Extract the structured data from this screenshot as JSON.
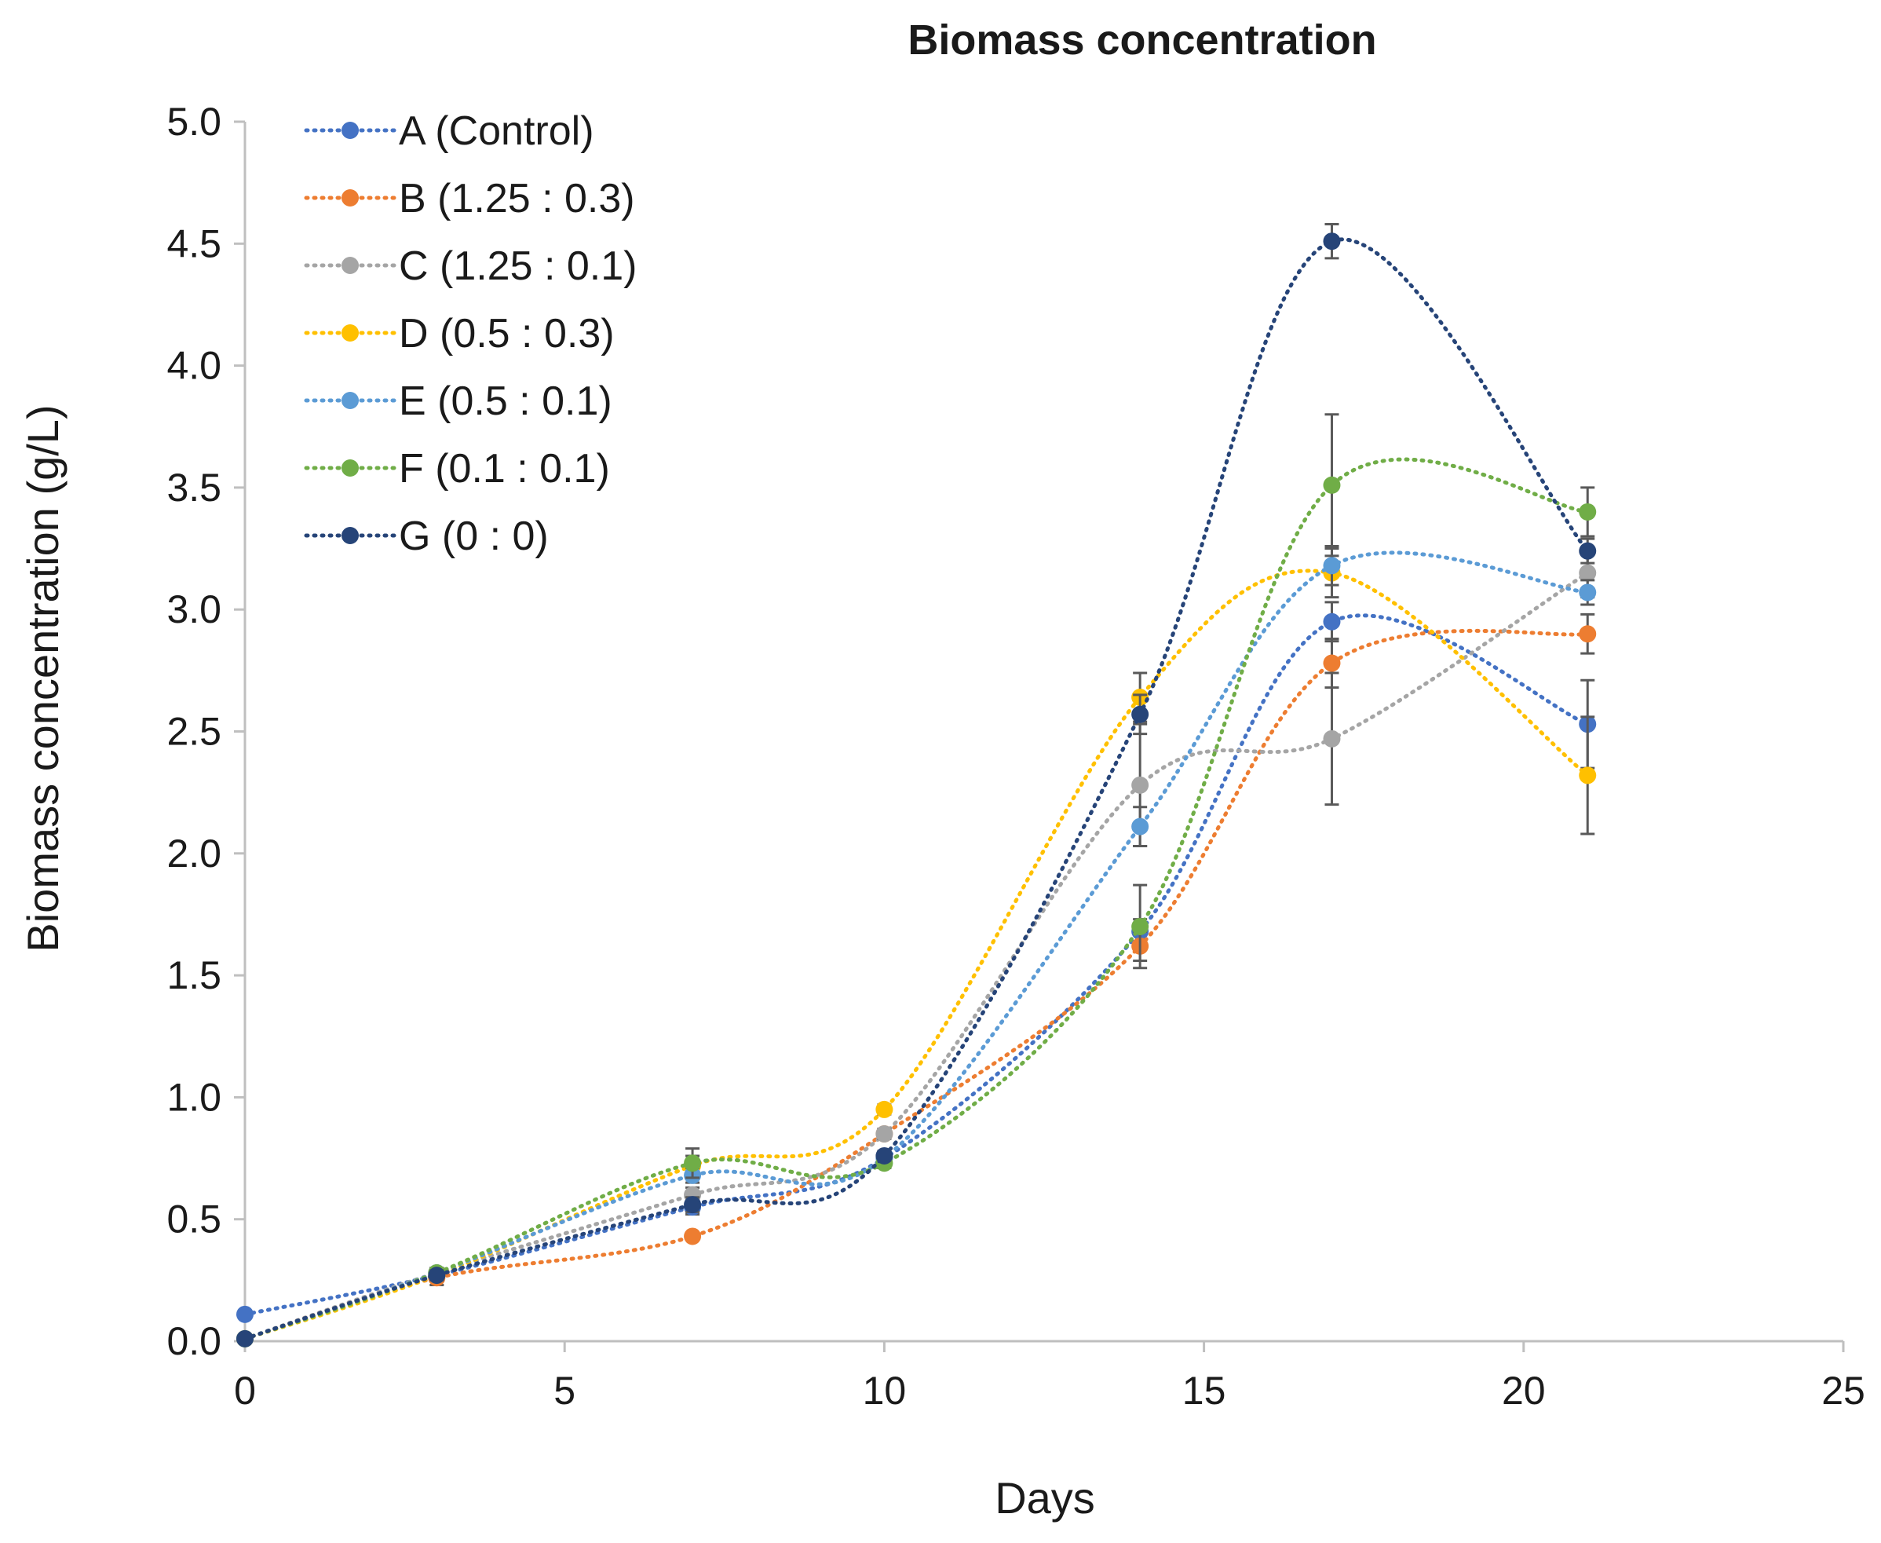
{
  "chart_data": {
    "type": "line",
    "title": "Biomass concentration",
    "xlabel": "Days",
    "ylabel": "Biomass concentration (g/L)",
    "xlim": [
      0,
      25
    ],
    "ylim": [
      0,
      5
    ],
    "xticks": [
      0,
      5,
      10,
      15,
      20,
      25
    ],
    "yticks": [
      0,
      0.5,
      1,
      1.5,
      2,
      2.5,
      3,
      3.5,
      4,
      4.5,
      5
    ],
    "xtick_labels": [
      "0",
      "5",
      "10",
      "15",
      "20",
      "25"
    ],
    "ytick_labels": [
      "0.0",
      "0.5",
      "1.0",
      "1.5",
      "2.0",
      "2.5",
      "3.0",
      "3.5",
      "4.0",
      "4.5",
      "5.0"
    ],
    "grid": false,
    "line_style": "dotted, smoothed",
    "legend_position": "top-left",
    "x": [
      0,
      3,
      7,
      10,
      14,
      17,
      21
    ],
    "series": [
      {
        "name": "A (Control)",
        "color": "#4472c4",
        "values": [
          0.11,
          0.27,
          0.55,
          0.75,
          1.68,
          2.95,
          2.53
        ],
        "errors": [
          0,
          0.02,
          0.03,
          0.02,
          0.05,
          0.08,
          0.18
        ]
      },
      {
        "name": "B (1.25 : 0.3)",
        "color": "#ed7d31",
        "values": [
          0.01,
          0.26,
          0.43,
          0.85,
          1.62,
          2.78,
          2.9
        ],
        "errors": [
          0,
          0.03,
          0.01,
          0.02,
          0.06,
          0.1,
          0.08
        ]
      },
      {
        "name": "C (1.25 : 0.1)",
        "color": "#a5a5a5",
        "values": [
          0.01,
          0.28,
          0.6,
          0.85,
          2.28,
          2.47,
          3.15
        ],
        "errors": [
          0,
          0.02,
          0.03,
          0.02,
          0.25,
          0.27,
          0.1
        ]
      },
      {
        "name": "D (0.5 : 0.3)",
        "color": "#ffc000",
        "values": [
          0.01,
          0.27,
          0.72,
          0.95,
          2.64,
          3.15,
          2.32
        ],
        "errors": [
          0,
          0.02,
          0.04,
          0.02,
          0.1,
          0.1,
          0.24
        ]
      },
      {
        "name": "E (0.5 : 0.1)",
        "color": "#5b9bd5",
        "values": [
          0.01,
          0.28,
          0.68,
          0.75,
          2.11,
          3.18,
          3.07
        ],
        "errors": [
          0,
          0.02,
          0.03,
          0.02,
          0.08,
          0.08,
          0.05
        ]
      },
      {
        "name": "F (0.1 : 0.1)",
        "color": "#70ad47",
        "values": [
          0.01,
          0.28,
          0.73,
          0.73,
          1.7,
          3.51,
          3.4
        ],
        "errors": [
          0,
          0.02,
          0.06,
          0.02,
          0.17,
          0.29,
          0.1
        ]
      },
      {
        "name": "G (0 : 0)",
        "color": "#264478",
        "values": [
          0.01,
          0.27,
          0.56,
          0.76,
          2.57,
          4.51,
          3.24
        ],
        "errors": [
          0,
          0.02,
          0.03,
          0.02,
          0.08,
          0.07,
          0.05
        ]
      }
    ]
  }
}
